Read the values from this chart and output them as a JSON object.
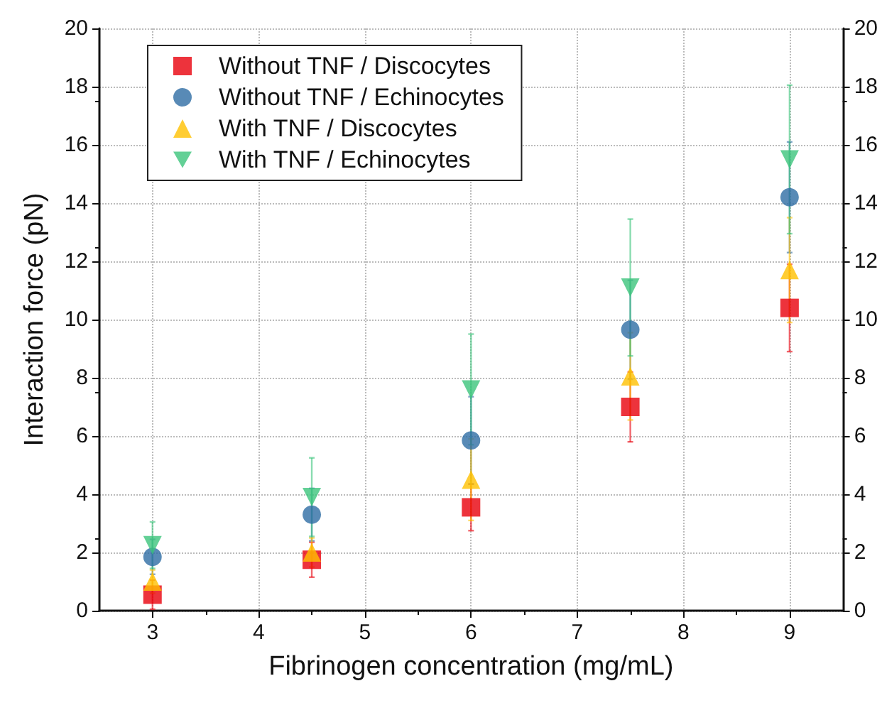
{
  "chart_data": {
    "type": "scatter",
    "xlabel": "Fibrinogen concentration (mg/mL)",
    "ylabel": "Interaction force (pN)",
    "x": [
      3,
      4.5,
      6,
      7.5,
      9
    ],
    "series": [
      {
        "name": "Without TNF / Discocytes",
        "color": "#e8000b",
        "marker": "square",
        "values": [
          0.55,
          1.75,
          3.55,
          7.0,
          10.4
        ],
        "errors": [
          0.5,
          0.6,
          0.8,
          1.2,
          1.5
        ]
      },
      {
        "name": "Without TNF / Echinocytes",
        "color": "#2e6da4",
        "marker": "circle",
        "values": [
          1.85,
          3.3,
          5.85,
          9.65,
          14.2
        ],
        "errors": [
          0.6,
          0.9,
          1.5,
          1.7,
          1.9
        ]
      },
      {
        "name": "With TNF / Discocytes",
        "color": "#ffc000",
        "marker": "triangle",
        "values": [
          1.0,
          2.0,
          4.5,
          8.05,
          11.7
        ],
        "errors": [
          0.4,
          0.5,
          1.4,
          1.5,
          1.8
        ]
      },
      {
        "name": "With TNF / Echinocytes",
        "color": "#3cc47c",
        "marker": "triangle-down",
        "values": [
          2.25,
          3.9,
          7.6,
          11.1,
          15.5
        ],
        "errors": [
          0.8,
          1.35,
          1.9,
          2.35,
          2.55
        ]
      }
    ],
    "xlim": [
      2.5,
      9.5
    ],
    "xticks": [
      3,
      4,
      5,
      6,
      7,
      8,
      9
    ],
    "ylim": [
      0,
      20
    ],
    "yticks": [
      0,
      2,
      4,
      6,
      8,
      10,
      12,
      14,
      16,
      18,
      20
    ],
    "y2lim": [
      0,
      20
    ],
    "y2ticks": [
      0,
      2,
      4,
      6,
      8,
      10,
      12,
      14,
      16,
      18,
      20
    ],
    "grid": true,
    "legend": "top left"
  }
}
